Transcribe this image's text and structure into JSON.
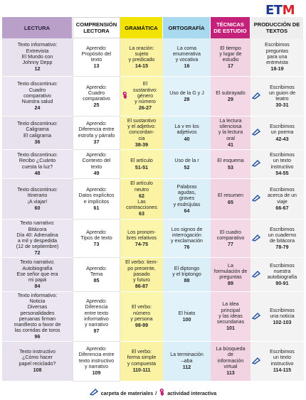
{
  "logo": {
    "left": "ET",
    "right": "M"
  },
  "headers": [
    "LECTURA",
    "COMPRENSIÓN LECTORA",
    "GRAMÁTICA",
    "ORTOGRAFÍA",
    "TÉCNICAS DE ESTUDIO",
    "PRODUCCIÓN DE TEXTOS"
  ],
  "colors": {
    "lectura": "#b9a0c9",
    "gramatica": "#f2e400",
    "ortografia": "#a9d9ef",
    "tecnicas": "#c4217a",
    "icon_blue": "#1f4fa0",
    "icon_pink": "#c4217a"
  },
  "rows": [
    [
      {
        "lines": [
          "Texto informativo:",
          "Entrevista",
          "El Mundo con",
          "Johnny Depp"
        ],
        "page": "12"
      },
      {
        "lines": [
          "Aprendo:",
          "Propósito del",
          "texto"
        ],
        "page": "13"
      },
      {
        "lines": [
          "La oración:",
          "sujeto",
          "y predicado"
        ],
        "page": "14-15"
      },
      {
        "lines": [
          "La  coma",
          "enumerativa",
          "y vocativa"
        ],
        "page": "16"
      },
      {
        "lines": [
          "El tiempo",
          "y lugar de",
          "estudio"
        ],
        "page": "17"
      },
      {
        "lines": [
          "Escribimos",
          "preguntas",
          "para una",
          "entrevista"
        ],
        "page": "18-19"
      }
    ],
    [
      {
        "lines": [
          "Texto discontinuo:",
          "Cuadro",
          "comparativo",
          "Nuestra salud"
        ],
        "page": "24"
      },
      {
        "lines": [
          "Aprendo:",
          "Cuadro",
          "comparativo"
        ],
        "page": "25"
      },
      {
        "lines": [
          "El",
          "sustantivo:",
          "género",
          "y número"
        ],
        "page": "26-27",
        "icon": "interactive"
      },
      {
        "lines": [
          "Uso de la G y J"
        ],
        "page": "28"
      },
      {
        "lines": [
          "El subrayado"
        ],
        "page": "29"
      },
      {
        "lines": [
          "Escribimos",
          "un guion de",
          "teatro"
        ],
        "page": "30-31",
        "icon": "folder"
      }
    ],
    [
      {
        "lines": [
          "Texto discontinuo:",
          "Caligrama",
          "El caligrama"
        ],
        "page": "36"
      },
      {
        "lines": [
          "Aprendo:",
          "Diferencia entre",
          "estrofa y párrafo"
        ],
        "page": "37"
      },
      {
        "lines": [
          "El sustantivo",
          "y el adjetivo:",
          "concordan-",
          "cia"
        ],
        "page": "38-39"
      },
      {
        "lines": [
          "La v en los",
          "adjetivos"
        ],
        "page": "40"
      },
      {
        "lines": [
          "La lectura",
          "silenciosa",
          "y la lectura",
          "oral"
        ],
        "page": "41"
      },
      {
        "lines": [
          "Escribimos",
          "un poema"
        ],
        "page": "42-43",
        "icon": "folder"
      }
    ],
    [
      {
        "lines": [
          "Texto discontinuo:",
          "Recibo ¿Cuánto",
          "cuesta la luz?"
        ],
        "page": "48"
      },
      {
        "lines": [
          "Aprendo:",
          "Contexto del",
          "texto"
        ],
        "page": "49"
      },
      {
        "lines": [
          "El artículo"
        ],
        "page": "51-51"
      },
      {
        "lines": [
          "Uso de la r"
        ],
        "page": "52"
      },
      {
        "lines": [
          "El esquema"
        ],
        "page": "53"
      },
      {
        "lines": [
          "Escribimos",
          "un texto",
          "instructivo"
        ],
        "page": "54-55",
        "icon": "folder"
      }
    ],
    [
      {
        "lines": [
          "Texto discontinuo:",
          "Itinerario",
          "¡A viajar!"
        ],
        "page": "60"
      },
      {
        "lines": [
          "Aprendo:",
          "Datos explícitos",
          "e implícitos"
        ],
        "page": "61"
      },
      {
        "lines": [
          "El artículo",
          "neutro"
        ],
        "page": "62",
        "extra_lines": [
          "Las",
          "contracciones"
        ],
        "extra_page": "63"
      },
      {
        "lines": [
          "Palabras",
          "agudas,",
          "graves",
          "y esdrújulas"
        ],
        "page": "64"
      },
      {
        "lines": [
          "El resumen"
        ],
        "page": "65"
      },
      {
        "lines": [
          "Escribimos",
          "acerca de un",
          "viaje"
        ],
        "page": "66-67",
        "icon": "folder"
      }
    ],
    [
      {
        "lines": [
          "Texto narrativo:",
          "Bitácora",
          "Día 40: Adrenalina",
          "a mil y despedida",
          "(12 de septiembre)"
        ],
        "page": "72"
      },
      {
        "lines": [
          "Aprendo:",
          "Tipos de texto"
        ],
        "page": "73"
      },
      {
        "lines": [
          "Los pronom-",
          "bres relativos"
        ],
        "page": "74-75"
      },
      {
        "lines": [
          "Los signos de",
          "interrogación",
          "y exclamación"
        ],
        "page": "76"
      },
      {
        "lines": [
          "El cuadro",
          "comparativo"
        ],
        "page": "77"
      },
      {
        "lines": [
          "Escribimos",
          "un cuaderno",
          "de bitácora"
        ],
        "page": "78-79",
        "icon": "folder"
      }
    ],
    [
      {
        "lines": [
          "Texto narrativo:",
          "Autobiografía",
          "Ese señor que era",
          "mi papá"
        ],
        "page": "84"
      },
      {
        "lines": [
          "Aprendo:",
          "Tema"
        ],
        "page": "85"
      },
      {
        "lines": [
          "El verbo: tiem-",
          "po presente,",
          "pasado",
          "y futuro"
        ],
        "page": "86-87"
      },
      {
        "lines": [
          "El diptongo",
          "y el triptongo"
        ],
        "page": "88"
      },
      {
        "lines": [
          "La",
          "formulación de",
          "preguntas"
        ],
        "page": "89"
      },
      {
        "lines": [
          "Escribimos",
          "nuestra",
          "autobiografía"
        ],
        "page": "90-91",
        "icon": "folder"
      }
    ],
    [
      {
        "lines": [
          "Texto informativo:",
          "Noticia",
          "Diversas",
          "personalidades",
          "peruanas firman",
          "manifiesto a favor de",
          "las corridas de toros"
        ],
        "page": "96"
      },
      {
        "lines": [
          "Aprendo:",
          "Diferencia",
          "entre texto",
          "informativo",
          "y narrativo"
        ],
        "page": "97"
      },
      {
        "lines": [
          "El verbo:",
          "número",
          "y persona"
        ],
        "page": "98-99"
      },
      {
        "lines": [
          "El hiato"
        ],
        "page": "100"
      },
      {
        "lines": [
          "La idea",
          "principal",
          "y las ideas",
          "secundarias"
        ],
        "page": "101"
      },
      {
        "lines": [
          "Escribimos",
          "una noticia"
        ],
        "page": "102-103",
        "icon": "folder"
      }
    ],
    [
      {
        "lines": [
          "Texto instructivo",
          "¿Cómo hacer",
          "papel reciclado?"
        ],
        "page": "108"
      },
      {
        "lines": [
          "Aprendo:",
          "Diferencia entre",
          "texto instructivo",
          "y narrativo"
        ],
        "page": "109"
      },
      {
        "lines": [
          "El verbo:",
          "forma simple",
          "y compuesta"
        ],
        "page": "110-111"
      },
      {
        "lines": [
          "La terminación",
          "–aba"
        ],
        "page": "112"
      },
      {
        "lines": [
          "La búsqueda",
          "de",
          "información",
          "virtual"
        ],
        "page": "113"
      },
      {
        "lines": [
          "Escribimos",
          "un texto",
          "instructivo"
        ],
        "page": "114-115",
        "icon": "folder"
      }
    ]
  ],
  "legend": {
    "folder_label": "carpeta de materiales",
    "separator": "/",
    "interactive_label": "actividad interactiva"
  }
}
